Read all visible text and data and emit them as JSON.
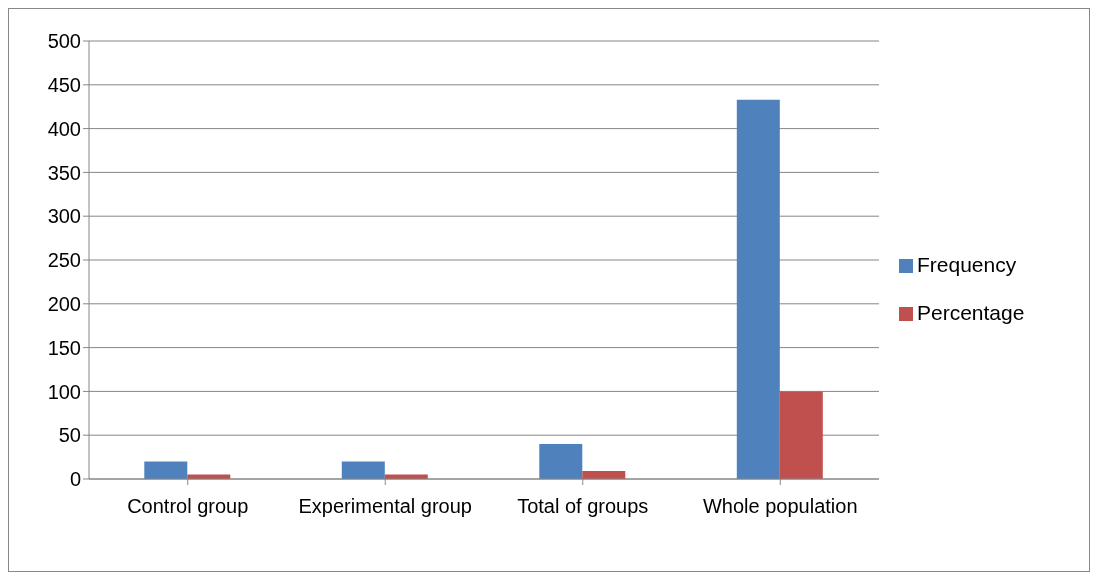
{
  "chart_data": {
    "type": "bar",
    "categories": [
      "Control group",
      "Experimental group",
      "Total of groups",
      "Whole population"
    ],
    "series": [
      {
        "name": "Frequency",
        "color": "#4f81bd",
        "values": [
          20,
          20,
          40,
          433
        ]
      },
      {
        "name": "Percentage",
        "color": "#c0504d",
        "values": [
          5,
          5,
          9,
          100
        ]
      }
    ],
    "ylim": [
      0,
      500
    ],
    "yticks": [
      0,
      50,
      100,
      150,
      200,
      250,
      300,
      350,
      400,
      450,
      500
    ],
    "grid": "y",
    "legend": "right"
  }
}
